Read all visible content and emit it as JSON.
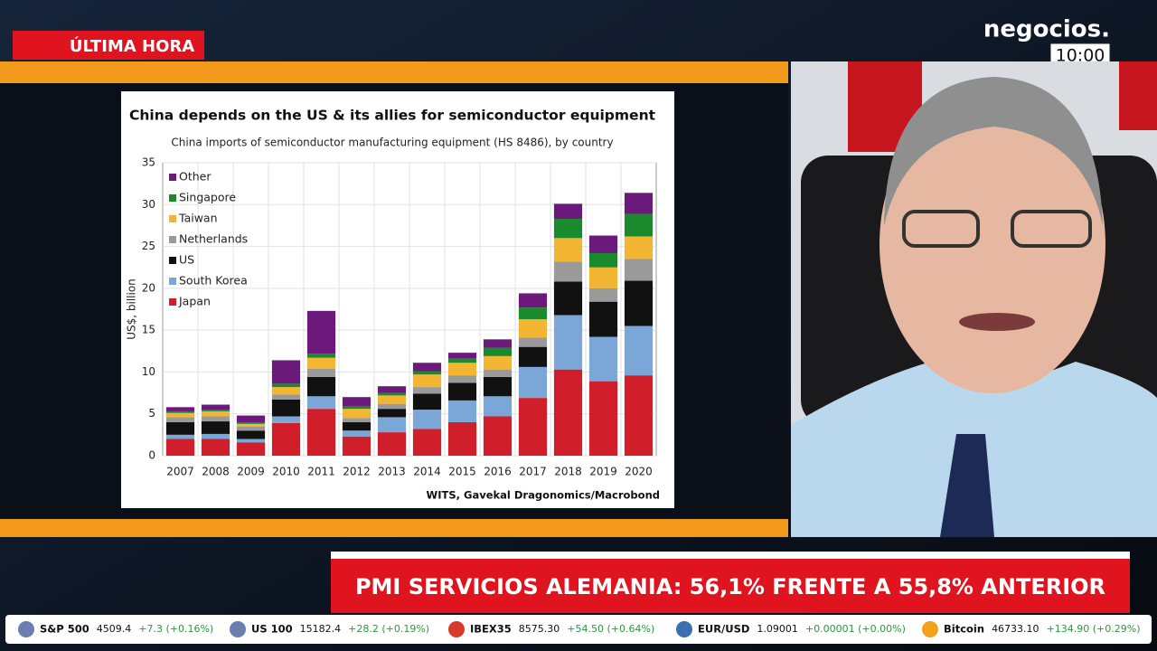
{
  "header": {
    "breaking": "ÚLTIMA HORA",
    "brand": "negocios.",
    "time": "10:00"
  },
  "headline": "PMI SERVICIOS ALEMANIA: 56,1% FRENTE A 55,8% ANTERIOR",
  "ticker": [
    {
      "name": "S&P 500",
      "price": "4509.4",
      "change": "+7.3 (+0.16%)"
    },
    {
      "name": "US 100",
      "price": "15182.4",
      "change": "+28.2 (+0.19%)"
    },
    {
      "name": "IBEX35",
      "price": "8575.30",
      "change": "+54.50 (+0.64%)"
    },
    {
      "name": "EUR/USD",
      "price": "1.09001",
      "change": "+0.00001 (+0.00%)"
    },
    {
      "name": "Bitcoin",
      "price": "46733.10",
      "change": "+134.90 (+0.29%)"
    }
  ],
  "chart_data": {
    "type": "stacked_bar",
    "title": "China depends on the US & its allies for semiconductor equipment",
    "subtitle": "China imports of semiconductor manufacturing equipment (HS 8486), by country",
    "y_label": "US$, billion",
    "source": "WITS, Gavekal Dragonomics/Macrobond",
    "categories": [
      "2007",
      "2008",
      "2009",
      "2010",
      "2011",
      "2012",
      "2013",
      "2014",
      "2015",
      "2016",
      "2017",
      "2018",
      "2019",
      "2020"
    ],
    "series": [
      {
        "name": "Japan",
        "color": "#d01f2a",
        "values": [
          2.0,
          2.0,
          1.6,
          3.9,
          5.6,
          2.3,
          2.8,
          3.2,
          4.0,
          4.7,
          6.9,
          10.3,
          8.9,
          9.6
        ]
      },
      {
        "name": "South Korea",
        "color": "#7ba7d8",
        "values": [
          0.5,
          0.6,
          0.4,
          0.8,
          1.5,
          0.7,
          1.8,
          2.3,
          2.6,
          2.4,
          3.7,
          6.5,
          5.3,
          5.9
        ]
      },
      {
        "name": "US",
        "color": "#111111",
        "values": [
          1.5,
          1.5,
          1.0,
          2.0,
          2.3,
          1.0,
          1.0,
          1.9,
          2.1,
          2.3,
          2.4,
          4.0,
          4.2,
          5.4
        ]
      },
      {
        "name": "Netherlands",
        "color": "#9a9a9a",
        "values": [
          0.6,
          0.6,
          0.5,
          0.6,
          1.0,
          0.5,
          0.6,
          0.8,
          0.9,
          0.9,
          1.1,
          2.4,
          1.6,
          2.6
        ]
      },
      {
        "name": "Taiwan",
        "color": "#f2b632",
        "values": [
          0.5,
          0.6,
          0.3,
          0.9,
          1.3,
          1.1,
          1.0,
          1.5,
          1.5,
          1.6,
          2.2,
          2.8,
          2.5,
          2.7
        ]
      },
      {
        "name": "Singapore",
        "color": "#1b8a2c",
        "values": [
          0.2,
          0.2,
          0.2,
          0.4,
          0.5,
          0.3,
          0.3,
          0.4,
          0.5,
          1.0,
          1.4,
          2.3,
          1.7,
          2.7
        ]
      },
      {
        "name": "Other",
        "color": "#6b1a7c",
        "values": [
          0.5,
          0.6,
          0.8,
          2.8,
          5.1,
          1.1,
          0.8,
          1.0,
          0.7,
          1.0,
          1.7,
          1.8,
          2.1,
          2.5
        ]
      }
    ],
    "ylim": [
      0,
      35
    ],
    "yticks": [
      0,
      5,
      10,
      15,
      20,
      25,
      30,
      35
    ],
    "grid": true
  }
}
